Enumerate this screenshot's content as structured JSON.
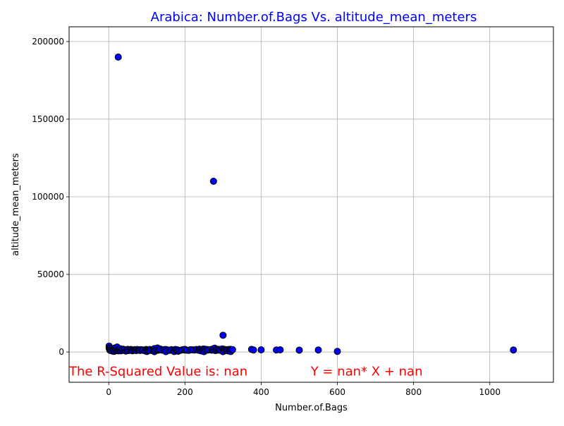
{
  "chart_data": {
    "type": "scatter",
    "title": "Arabica: Number.of.Bags Vs. altitude_mean_meters",
    "xlabel": "Number.of.Bags",
    "ylabel": "altitude_mean_meters",
    "xlim": [
      -104,
      1167
    ],
    "ylim": [
      -19500,
      209500
    ],
    "xticks": [
      0,
      200,
      400,
      600,
      800,
      1000
    ],
    "yticks": [
      0,
      50000,
      100000,
      150000,
      200000
    ],
    "xtick_labels": [
      "0",
      "200",
      "400",
      "600",
      "800",
      "1000"
    ],
    "ytick_labels": [
      "0",
      "50000",
      "100000",
      "150000",
      "200000"
    ],
    "grid": true,
    "colors": {
      "title": "#0000ff",
      "annotation": "#ff0000",
      "marker_fill": "#0000ff",
      "marker_edge": "#000000",
      "grid": "#b0b0b0"
    },
    "annotations": [
      {
        "text": "The R-Squared Value is: nan",
        "x": -104,
        "y": -12500
      },
      {
        "text": "Y = nan* X + nan",
        "x": 530,
        "y": -12500
      }
    ],
    "points": [
      [
        1,
        3800
      ],
      [
        1,
        2500
      ],
      [
        2,
        1800
      ],
      [
        3,
        1200
      ],
      [
        4,
        2000
      ],
      [
        5,
        900
      ],
      [
        6,
        1500
      ],
      [
        8,
        2200
      ],
      [
        10,
        1300
      ],
      [
        10,
        600
      ],
      [
        12,
        1700
      ],
      [
        14,
        400
      ],
      [
        15,
        1100
      ],
      [
        16,
        2600
      ],
      [
        18,
        1600
      ],
      [
        20,
        900
      ],
      [
        20,
        1950
      ],
      [
        22,
        3200
      ],
      [
        24,
        1400
      ],
      [
        25,
        190000
      ],
      [
        25,
        700
      ],
      [
        27,
        1200
      ],
      [
        29,
        1600
      ],
      [
        30,
        2100
      ],
      [
        32,
        800
      ],
      [
        35,
        1400
      ],
      [
        37,
        1800
      ],
      [
        40,
        1000
      ],
      [
        42,
        1500
      ],
      [
        45,
        600
      ],
      [
        48,
        1300
      ],
      [
        50,
        1700
      ],
      [
        52,
        900
      ],
      [
        55,
        1200
      ],
      [
        58,
        1600
      ],
      [
        60,
        1400
      ],
      [
        62,
        800
      ],
      [
        65,
        1100
      ],
      [
        68,
        1500
      ],
      [
        70,
        1300
      ],
      [
        72,
        900
      ],
      [
        75,
        1600
      ],
      [
        78,
        1200
      ],
      [
        80,
        1400
      ],
      [
        82,
        1000
      ],
      [
        85,
        1500
      ],
      [
        88,
        1200
      ],
      [
        90,
        1300
      ],
      [
        95,
        800
      ],
      [
        98,
        1600
      ],
      [
        100,
        1400
      ],
      [
        100,
        300
      ],
      [
        102,
        1100
      ],
      [
        105,
        1200
      ],
      [
        108,
        1600
      ],
      [
        110,
        1000
      ],
      [
        115,
        1500
      ],
      [
        118,
        1300
      ],
      [
        120,
        2200
      ],
      [
        120,
        200
      ],
      [
        122,
        1100
      ],
      [
        125,
        1700
      ],
      [
        128,
        2600
      ],
      [
        130,
        1200
      ],
      [
        132,
        1500
      ],
      [
        135,
        1900
      ],
      [
        140,
        1200
      ],
      [
        145,
        1500
      ],
      [
        150,
        1600
      ],
      [
        150,
        200
      ],
      [
        155,
        1300
      ],
      [
        160,
        1100
      ],
      [
        165,
        1500
      ],
      [
        170,
        1200
      ],
      [
        172,
        300
      ],
      [
        175,
        1600
      ],
      [
        178,
        1100
      ],
      [
        180,
        1400
      ],
      [
        182,
        500
      ],
      [
        185,
        1000
      ],
      [
        190,
        1200
      ],
      [
        195,
        1500
      ],
      [
        200,
        1300
      ],
      [
        200,
        1700
      ],
      [
        205,
        1200
      ],
      [
        210,
        1100
      ],
      [
        215,
        1500
      ],
      [
        220,
        1400
      ],
      [
        225,
        1300
      ],
      [
        230,
        1600
      ],
      [
        235,
        1200
      ],
      [
        238,
        1800
      ],
      [
        240,
        1500
      ],
      [
        242,
        700
      ],
      [
        245,
        1300
      ],
      [
        248,
        1900
      ],
      [
        250,
        1400
      ],
      [
        250,
        200
      ],
      [
        252,
        1800
      ],
      [
        255,
        1100
      ],
      [
        258,
        1600
      ],
      [
        260,
        1300
      ],
      [
        265,
        1500
      ],
      [
        270,
        1200
      ],
      [
        272,
        1800
      ],
      [
        275,
        110000
      ],
      [
        275,
        1400
      ],
      [
        278,
        2500
      ],
      [
        280,
        900
      ],
      [
        282,
        1600
      ],
      [
        285,
        1300
      ],
      [
        288,
        1700
      ],
      [
        290,
        1200
      ],
      [
        292,
        1500
      ],
      [
        295,
        1000
      ],
      [
        298,
        2000
      ],
      [
        300,
        10800
      ],
      [
        300,
        1300
      ],
      [
        300,
        200
      ],
      [
        303,
        1700
      ],
      [
        305,
        1100
      ],
      [
        308,
        1500
      ],
      [
        310,
        1300
      ],
      [
        312,
        800
      ],
      [
        315,
        1600
      ],
      [
        318,
        1200
      ],
      [
        320,
        1700
      ],
      [
        320,
        300
      ],
      [
        322,
        1400
      ],
      [
        325,
        1500
      ],
      [
        375,
        1700
      ],
      [
        380,
        1300
      ],
      [
        400,
        1400
      ],
      [
        440,
        1300
      ],
      [
        450,
        1400
      ],
      [
        500,
        1200
      ],
      [
        550,
        1300
      ],
      [
        600,
        400
      ],
      [
        1062,
        1300
      ]
    ]
  }
}
